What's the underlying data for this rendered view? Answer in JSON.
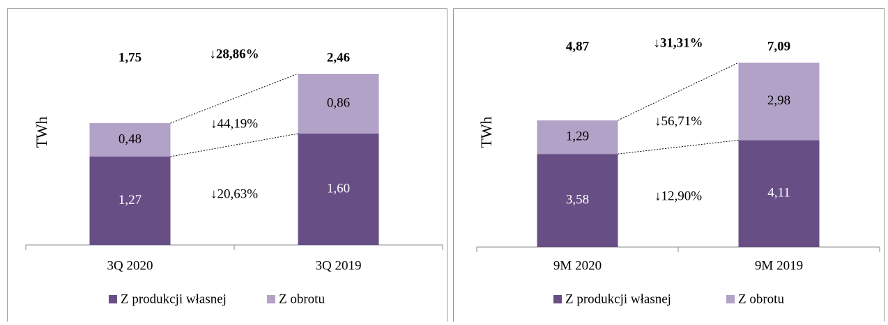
{
  "chart_data": [
    {
      "type": "stacked_bar",
      "y_label": "TWh",
      "categories": [
        "3Q 2020",
        "3Q 2019"
      ],
      "series": [
        {
          "name": "Z produkcji własnej",
          "color": "#674f86",
          "values": [
            1.27,
            1.6
          ],
          "value_labels": [
            "1,27",
            "1,60"
          ]
        },
        {
          "name": "Z obrotu",
          "color": "#b3a2c7",
          "values": [
            0.48,
            0.86
          ],
          "value_labels": [
            "0,48",
            "0,86"
          ]
        }
      ],
      "totals": {
        "values": [
          1.75,
          2.46
        ],
        "value_labels": [
          "1,75",
          "2,46"
        ]
      },
      "annotations": [
        "↓28,86%",
        "↓44,19%",
        "↓20,63%"
      ],
      "ylim": [
        0,
        3
      ]
    },
    {
      "type": "stacked_bar",
      "y_label": "TWh",
      "categories": [
        "9M 2020",
        "9M 2019"
      ],
      "series": [
        {
          "name": "Z produkcji własnej",
          "color": "#674f86",
          "values": [
            3.58,
            4.11
          ],
          "value_labels": [
            "3,58",
            "4,11"
          ]
        },
        {
          "name": "Z obrotu",
          "color": "#b3a2c7",
          "values": [
            1.29,
            2.98
          ],
          "value_labels": [
            "1,29",
            "2,98"
          ]
        }
      ],
      "totals": {
        "values": [
          4.87,
          7.09
        ],
        "value_labels": [
          "4,87",
          "7,09"
        ]
      },
      "annotations": [
        "↓31,31%",
        "↓56,71%",
        "↓12,90%"
      ],
      "ylim": [
        0,
        8
      ]
    }
  ]
}
